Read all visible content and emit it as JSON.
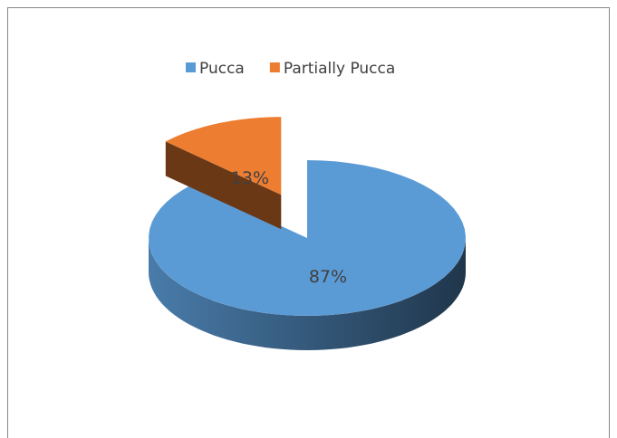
{
  "chart_data": {
    "type": "pie",
    "categories": [
      "Pucca",
      "Partially Pucca"
    ],
    "values": [
      87,
      13
    ],
    "value_labels": [
      "87%",
      "13%"
    ],
    "colors": [
      "#5b9bd5",
      "#ed7d31"
    ],
    "legend": "top"
  }
}
